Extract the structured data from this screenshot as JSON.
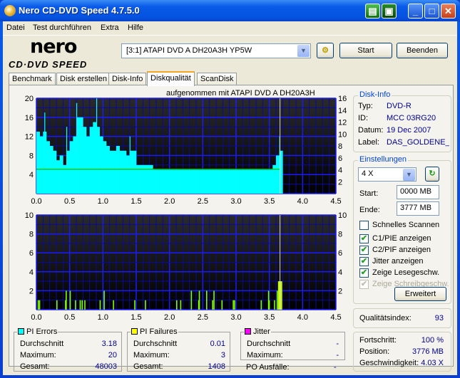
{
  "window": {
    "title": "Nero CD-DVD Speed 4.7.5.0"
  },
  "menu": [
    "Datei",
    "Test durchführen",
    "Extra",
    "Hilfe"
  ],
  "toolbar": {
    "logo_text": "nero",
    "logo_sub": "CD·DVD SPEED",
    "drive": "[3:1]  ATAPI DVD A  DH20A3H YP5W",
    "start": "Start",
    "quit": "Beenden"
  },
  "tabs": [
    {
      "label": "Benchmark"
    },
    {
      "label": "Disk erstellen"
    },
    {
      "label": "Disk-Info"
    },
    {
      "label": "Diskqualität",
      "active": true
    },
    {
      "label": "ScanDisk"
    }
  ],
  "chart_caption": "aufgenommen mit ATAPI    DVD A  DH20A3H",
  "disk_info": {
    "title": "Disk-Info",
    "typ_label": "Typ:",
    "typ": "DVD-R",
    "id_label": "ID:",
    "id": "MCC 03RG20",
    "datum_label": "Datum:",
    "datum": "19 Dec 2007",
    "label_label": "Label:",
    "label": "DAS_GOLDENE_"
  },
  "settings": {
    "title": "Einstellungen",
    "speed": "4 X",
    "start_label": "Start:",
    "start": "0000 MB",
    "end_label": "Ende:",
    "end": "3777 MB",
    "checks": [
      {
        "label": "Schnelles Scannen",
        "checked": false,
        "enabled": true
      },
      {
        "label": "C1/PIE anzeigen",
        "checked": true,
        "enabled": true
      },
      {
        "label": "C2/PIF anzeigen",
        "checked": true,
        "enabled": true
      },
      {
        "label": "Jitter anzeigen",
        "checked": true,
        "enabled": true
      },
      {
        "label": "Zeige Lesegeschw.",
        "checked": true,
        "enabled": true
      },
      {
        "label": "Zeige Schreibgeschw.",
        "checked": true,
        "enabled": false
      }
    ],
    "advanced": "Erweitert"
  },
  "quality": {
    "label": "Qualitätsindex:",
    "value": "93"
  },
  "progress": {
    "progress_label": "Fortschritt:",
    "progress": "100 %",
    "position_label": "Position:",
    "position": "3776 MB",
    "speed_label": "Geschwindigkeit:",
    "speed": "4.03 X"
  },
  "stats": {
    "pie": {
      "title": "PI Errors",
      "color": "#00ffff",
      "avg_label": "Durchschnitt",
      "avg": "3.18",
      "max_label": "Maximum:",
      "max": "20",
      "total_label": "Gesamt:",
      "total": "48003"
    },
    "pif": {
      "title": "PI Failures",
      "color": "#ffff00",
      "avg_label": "Durchschnitt",
      "avg": "0.01",
      "max_label": "Maximum:",
      "max": "3",
      "total_label": "Gesamt:",
      "total": "1408"
    },
    "jitter": {
      "title": "Jitter",
      "color": "#ff00ff",
      "avg_label": "Durchschnitt",
      "avg": "-",
      "max_label": "Maximum:",
      "max": "-"
    },
    "po_label": "PO Ausfälle:",
    "po": "-"
  },
  "chart_data": [
    {
      "type": "bar",
      "series_name": "PI Errors",
      "color": "#00ffff",
      "xlim": [
        0,
        4.5
      ],
      "ylim": [
        0,
        20
      ],
      "y2lim": [
        0,
        16
      ],
      "xticks": [
        "0.0",
        "0.5",
        "1.0",
        "1.5",
        "2.0",
        "2.5",
        "3.0",
        "3.5",
        "4.0",
        "4.5"
      ],
      "yticks": [
        "4",
        "8",
        "12",
        "16",
        "20"
      ],
      "y2ticks": [
        "2",
        "4",
        "6",
        "8",
        "10",
        "12",
        "14",
        "16"
      ],
      "x_step": 0.05,
      "values": [
        13,
        12,
        13,
        11,
        10,
        9,
        7,
        8,
        6,
        9,
        11,
        12,
        16,
        16,
        14,
        12,
        14,
        15,
        14,
        12,
        11,
        10,
        9,
        9,
        10,
        9,
        9,
        8,
        9,
        9,
        6,
        6,
        6,
        6,
        6,
        5,
        5,
        5,
        5,
        5,
        5,
        5,
        5,
        5,
        5,
        5,
        5,
        5,
        5,
        5,
        5,
        5,
        5,
        5,
        5,
        5,
        5,
        5,
        5,
        5,
        5,
        5,
        5,
        5,
        5,
        5,
        5,
        5,
        5,
        5,
        5,
        6,
        8,
        9
      ],
      "peaks": [
        [
          0.12,
          17
        ],
        [
          0.45,
          14
        ],
        [
          0.6,
          19
        ],
        [
          0.9,
          20
        ],
        [
          1.4,
          12
        ],
        [
          3.65,
          12
        ]
      ],
      "read_speed": {
        "color": "#00c000",
        "x": [
          0,
          3.66
        ],
        "y": [
          4.1,
          4.1
        ]
      },
      "end_marker": 3.66
    },
    {
      "type": "bar",
      "series_name": "PI Failures",
      "color": "#7fff00",
      "xlim": [
        0,
        4.5
      ],
      "ylim": [
        0,
        10
      ],
      "xticks": [
        "0.0",
        "0.5",
        "1.0",
        "1.5",
        "2.0",
        "2.5",
        "3.0",
        "3.5",
        "4.0",
        "4.5"
      ],
      "yticks": [
        "2",
        "4",
        "6",
        "8",
        "10"
      ],
      "points": [
        [
          0.02,
          1
        ],
        [
          0.04,
          1
        ],
        [
          0.3,
          1
        ],
        [
          0.43,
          1
        ],
        [
          0.44,
          2
        ],
        [
          0.5,
          2
        ],
        [
          0.58,
          1
        ],
        [
          0.65,
          1
        ],
        [
          0.68,
          1
        ],
        [
          0.72,
          1
        ],
        [
          0.95,
          1
        ],
        [
          1.01,
          2
        ],
        [
          1.15,
          1
        ],
        [
          1.47,
          1
        ],
        [
          1.63,
          1
        ],
        [
          2.1,
          1
        ],
        [
          2.16,
          1
        ],
        [
          2.32,
          2
        ],
        [
          2.43,
          1
        ],
        [
          2.44,
          2
        ],
        [
          2.55,
          2
        ],
        [
          2.64,
          1
        ],
        [
          2.66,
          2
        ],
        [
          2.78,
          1
        ],
        [
          2.95,
          1
        ],
        [
          2.97,
          1
        ],
        [
          3.37,
          1
        ],
        [
          3.48,
          2
        ],
        [
          3.49,
          1
        ],
        [
          3.57,
          1
        ],
        [
          3.61,
          2
        ],
        [
          3.63,
          3
        ],
        [
          3.65,
          3
        ]
      ],
      "end_marker": 3.66
    }
  ]
}
